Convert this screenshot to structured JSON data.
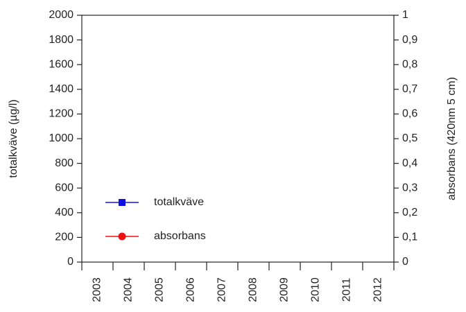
{
  "chart_data": {
    "type": "line",
    "categories": [
      "2003",
      "2004",
      "2005",
      "2006",
      "2007",
      "2008",
      "2009",
      "2010",
      "2011",
      "2012"
    ],
    "y_label": "totalkväve (µg/l)",
    "y2_label": "absorbans (420nm 5 cm)",
    "ylim": [
      0,
      2000
    ],
    "yticks": [
      0,
      200,
      400,
      600,
      800,
      1000,
      1200,
      1400,
      1600,
      1800,
      2000
    ],
    "y2lim": [
      0,
      1
    ],
    "y2ticks": [
      0,
      {
        "value": 0.1,
        "label": "0,1"
      },
      {
        "value": 0.2,
        "label": "0,2"
      },
      {
        "value": 0.3,
        "label": "0,3"
      },
      {
        "value": 0.4,
        "label": "0,4"
      },
      {
        "value": 0.5,
        "label": "0,5"
      },
      {
        "value": 0.6,
        "label": "0,6"
      },
      {
        "value": 0.7,
        "label": "0,7"
      },
      {
        "value": 0.8,
        "label": "0,8"
      },
      {
        "value": 0.9,
        "label": "0,9"
      },
      1
    ],
    "legend": "lower left",
    "series": [
      {
        "name": "totalkväve",
        "color": "#1010e0",
        "marker": "square",
        "values": [
          null,
          null,
          null,
          null,
          null,
          null,
          null,
          null,
          null,
          null
        ]
      },
      {
        "name": "absorbans",
        "color": "#ee1111",
        "marker": "circle",
        "axis": "y2",
        "values": [
          null,
          null,
          null,
          null,
          null,
          null,
          null,
          null,
          null,
          null
        ]
      }
    ]
  }
}
